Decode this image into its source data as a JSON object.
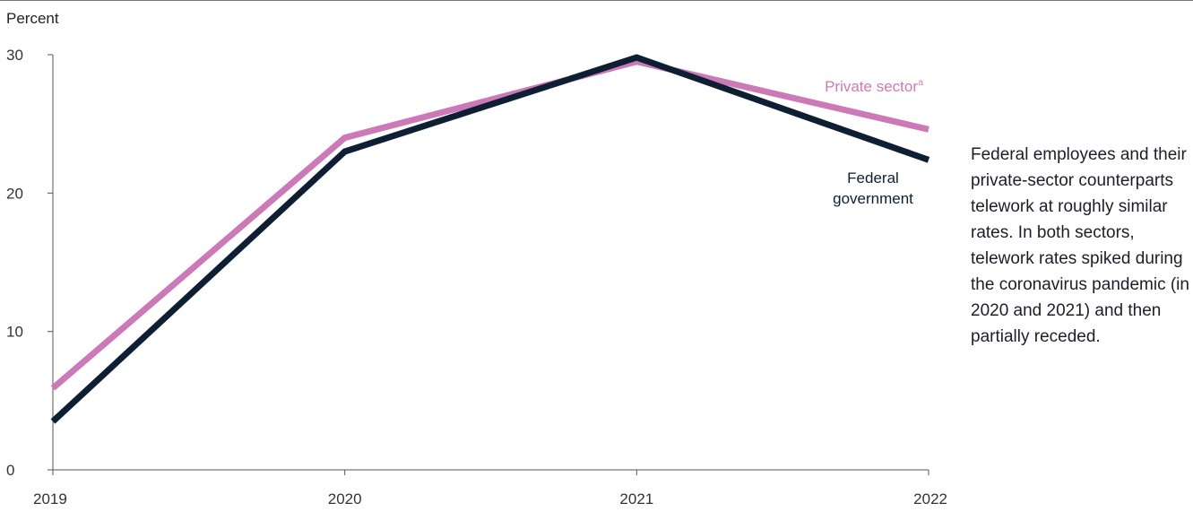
{
  "chart_data": {
    "type": "line",
    "ylabel": "Percent",
    "xlabel": "",
    "x": [
      "2019",
      "2020",
      "2021",
      "2022"
    ],
    "ylim": [
      0,
      30
    ],
    "yticks": [
      0,
      10,
      20,
      30
    ],
    "grid": false,
    "legend": "direct labels at line ends",
    "series": [
      {
        "name": "Private sector",
        "superscript": "a",
        "color": "#cc79b8",
        "values": [
          5.9,
          24.0,
          29.5,
          24.6
        ]
      },
      {
        "name": "Federal government",
        "label_lines": [
          "Federal",
          "government"
        ],
        "color": "#0e1f33",
        "values": [
          3.5,
          23.0,
          29.8,
          22.4
        ]
      }
    ]
  },
  "annotation": "Federal employees and their private-sector counterparts telework at roughly similar rates. In both sectors, telework rates spiked during the coronavirus pandemic (in 2020 and 2021) and then partially receded."
}
